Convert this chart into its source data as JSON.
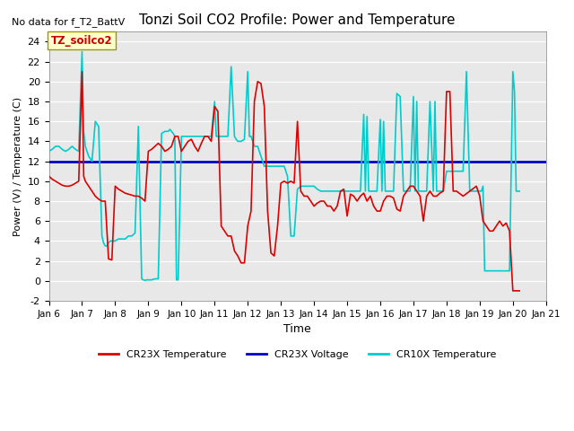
{
  "title": "Tonzi Soil CO2 Profile: Power and Temperature",
  "subtitle": "No data for f_T2_BattV",
  "ylabel": "Power (V) / Temperature (C)",
  "xlabel": "Time",
  "ylim": [
    -2,
    25
  ],
  "yticks": [
    -2,
    0,
    2,
    4,
    6,
    8,
    10,
    12,
    14,
    16,
    18,
    20,
    22,
    24
  ],
  "xtick_labels": [
    "Jan 6",
    "Jan 7",
    "Jan 8",
    "Jan 9",
    "Jan 10",
    "Jan 11",
    "Jan 12",
    "Jan 13",
    "Jan 14",
    "Jan 15",
    "Jan 16",
    "Jan 17",
    "Jan 18",
    "Jan 19",
    "Jan 20",
    "Jan 21"
  ],
  "annotation_box": "TZ_soilco2",
  "annotation_box_color": "#ffffcc",
  "annotation_box_text_color": "#cc0000",
  "plot_bg_color": "#e8e8e8",
  "cr23x_temp_color": "#dd0000",
  "cr23x_volt_color": "#0000cc",
  "cr10x_temp_color": "#00cccc",
  "voltage_value": 12.0,
  "cr23x_temp_x": [
    6.0,
    6.1,
    6.2,
    6.3,
    6.4,
    6.5,
    6.6,
    6.7,
    6.8,
    6.9,
    7.0,
    7.05,
    7.1,
    7.2,
    7.3,
    7.4,
    7.5,
    7.6,
    7.7,
    7.8,
    7.9,
    8.0,
    8.1,
    8.2,
    8.3,
    8.4,
    8.5,
    8.6,
    8.7,
    8.8,
    8.9,
    9.0,
    9.1,
    9.2,
    9.3,
    9.4,
    9.5,
    9.6,
    9.7,
    9.8,
    9.9,
    10.0,
    10.1,
    10.2,
    10.3,
    10.4,
    10.5,
    10.6,
    10.7,
    10.8,
    10.9,
    11.0,
    11.1,
    11.2,
    11.3,
    11.4,
    11.5,
    11.6,
    11.7,
    11.8,
    11.9,
    12.0,
    12.1,
    12.2,
    12.3,
    12.4,
    12.5,
    12.6,
    12.7,
    12.8,
    12.9,
    13.0,
    13.1,
    13.2,
    13.3,
    13.4,
    13.5,
    13.6,
    13.7,
    13.8,
    13.9,
    14.0,
    14.1,
    14.2,
    14.3,
    14.4,
    14.5,
    14.6,
    14.7,
    14.8,
    14.9,
    15.0,
    15.1,
    15.2,
    15.3,
    15.4,
    15.5,
    15.6,
    15.7,
    15.8,
    15.9,
    16.0,
    16.1,
    16.2,
    16.3,
    16.4,
    16.5,
    16.6,
    16.7,
    16.8,
    16.9,
    17.0,
    17.1,
    17.2,
    17.3,
    17.4,
    17.5,
    17.6,
    17.7,
    17.8,
    17.9,
    18.0,
    18.1,
    18.2,
    18.3,
    18.5,
    18.7,
    18.9,
    19.0,
    19.1,
    19.2,
    19.3,
    19.4,
    19.5,
    19.6,
    19.7,
    19.8,
    19.9,
    20.0,
    20.1,
    20.2
  ],
  "cr23x_temp_y": [
    10.5,
    10.2,
    10.0,
    9.8,
    9.6,
    9.5,
    9.5,
    9.6,
    9.8,
    10.0,
    21.0,
    10.5,
    10.0,
    9.5,
    9.0,
    8.5,
    8.2,
    8.0,
    8.0,
    2.2,
    2.1,
    9.5,
    9.2,
    9.0,
    8.8,
    8.7,
    8.6,
    8.5,
    8.5,
    8.3,
    8.0,
    13.0,
    13.2,
    13.5,
    13.8,
    13.5,
    13.0,
    13.2,
    13.5,
    14.5,
    14.5,
    13.0,
    13.5,
    14.0,
    14.2,
    13.5,
    13.0,
    13.8,
    14.5,
    14.5,
    14.0,
    17.5,
    17.0,
    5.5,
    5.0,
    4.5,
    4.5,
    3.0,
    2.5,
    1.8,
    1.8,
    5.5,
    7.0,
    18.0,
    20.0,
    19.8,
    17.5,
    7.0,
    2.8,
    2.5,
    5.5,
    9.8,
    10.0,
    9.8,
    10.0,
    9.8,
    16.0,
    9.0,
    8.5,
    8.5,
    8.0,
    7.5,
    7.8,
    8.0,
    8.0,
    7.5,
    7.5,
    7.0,
    7.5,
    9.0,
    9.2,
    6.5,
    8.7,
    8.5,
    8.0,
    8.5,
    8.8,
    8.0,
    8.5,
    7.5,
    7.0,
    7.0,
    8.0,
    8.5,
    8.5,
    8.3,
    7.2,
    7.0,
    8.5,
    9.0,
    9.5,
    9.5,
    9.0,
    8.5,
    6.0,
    8.5,
    9.0,
    8.5,
    8.5,
    8.8,
    9.0,
    19.0,
    19.0,
    9.0,
    9.0,
    8.5,
    9.0,
    9.5,
    8.5,
    6.0,
    5.5,
    5.0,
    5.0,
    5.5,
    6.0,
    5.5,
    5.8,
    5.0,
    -1.0,
    -1.0,
    -1.0
  ],
  "cr10x_temp_x": [
    6.0,
    6.1,
    6.2,
    6.3,
    6.4,
    6.5,
    6.6,
    6.7,
    6.8,
    6.9,
    7.0,
    7.05,
    7.1,
    7.2,
    7.3,
    7.4,
    7.5,
    7.6,
    7.65,
    7.7,
    7.75,
    7.8,
    7.85,
    7.9,
    8.0,
    8.1,
    8.2,
    8.3,
    8.4,
    8.5,
    8.6,
    8.7,
    8.8,
    8.85,
    8.9,
    8.95,
    9.0,
    9.1,
    9.2,
    9.3,
    9.4,
    9.5,
    9.6,
    9.65,
    9.7,
    9.75,
    9.8,
    9.85,
    9.9,
    10.0,
    10.1,
    10.2,
    10.3,
    10.4,
    10.5,
    10.6,
    10.7,
    10.8,
    10.9,
    11.0,
    11.05,
    11.1,
    11.2,
    11.3,
    11.4,
    11.5,
    11.6,
    11.65,
    11.7,
    11.75,
    11.8,
    11.9,
    12.0,
    12.05,
    12.1,
    12.15,
    12.2,
    12.3,
    12.4,
    12.5,
    12.6,
    12.7,
    12.8,
    12.9,
    13.0,
    13.1,
    13.2,
    13.3,
    13.4,
    13.5,
    13.6,
    13.7,
    13.8,
    13.9,
    14.0,
    14.1,
    14.2,
    14.3,
    14.4,
    14.5,
    14.6,
    14.7,
    14.8,
    14.9,
    15.0,
    15.1,
    15.2,
    15.3,
    15.4,
    15.5,
    15.55,
    15.6,
    15.65,
    15.7,
    15.8,
    15.9,
    16.0,
    16.05,
    16.1,
    16.15,
    16.2,
    16.3,
    16.4,
    16.5,
    16.6,
    16.7,
    16.8,
    16.9,
    17.0,
    17.05,
    17.1,
    17.15,
    17.2,
    17.3,
    17.4,
    17.5,
    17.6,
    17.65,
    17.7,
    17.75,
    17.8,
    17.9,
    18.0,
    18.05,
    18.1,
    18.15,
    18.2,
    18.3,
    18.4,
    18.5,
    18.6,
    18.7,
    18.8,
    18.9,
    19.0,
    19.05,
    19.1,
    19.15,
    19.2,
    19.3,
    19.4,
    19.5,
    19.6,
    19.7,
    19.8,
    19.9,
    20.0,
    20.05,
    20.1,
    20.15,
    20.2
  ],
  "cr10x_temp_y": [
    13.0,
    13.2,
    13.5,
    13.5,
    13.2,
    13.0,
    13.2,
    13.5,
    13.2,
    13.0,
    23.0,
    15.0,
    13.5,
    12.5,
    12.0,
    16.0,
    15.5,
    4.5,
    3.8,
    3.5,
    3.5,
    3.8,
    4.0,
    4.0,
    4.0,
    4.2,
    4.2,
    4.2,
    4.5,
    4.5,
    4.8,
    15.5,
    0.2,
    0.1,
    0.05,
    0.1,
    0.1,
    0.1,
    0.2,
    0.2,
    14.8,
    15.0,
    15.0,
    15.2,
    15.0,
    14.8,
    14.5,
    0.1,
    0.1,
    14.5,
    14.5,
    14.5,
    14.5,
    14.5,
    14.5,
    14.5,
    14.5,
    14.5,
    14.5,
    18.0,
    14.5,
    14.5,
    14.5,
    14.5,
    14.5,
    21.5,
    14.5,
    14.2,
    14.0,
    14.0,
    14.0,
    14.2,
    21.0,
    14.5,
    14.5,
    14.0,
    13.5,
    13.5,
    12.5,
    11.5,
    11.5,
    11.5,
    11.5,
    11.5,
    11.5,
    11.5,
    10.5,
    4.5,
    4.5,
    9.2,
    9.5,
    9.5,
    9.5,
    9.5,
    9.5,
    9.2,
    9.0,
    9.0,
    9.0,
    9.0,
    9.0,
    9.0,
    9.0,
    9.0,
    9.0,
    9.0,
    9.0,
    9.0,
    9.0,
    16.7,
    9.0,
    16.5,
    9.0,
    9.0,
    9.0,
    9.0,
    16.2,
    9.0,
    16.0,
    9.0,
    9.0,
    9.0,
    9.0,
    18.8,
    18.5,
    9.0,
    9.0,
    9.0,
    18.5,
    9.0,
    18.0,
    9.0,
    9.0,
    9.0,
    9.0,
    18.0,
    9.0,
    18.0,
    9.0,
    9.0,
    9.0,
    9.0,
    11.0,
    11.0,
    11.0,
    11.0,
    11.0,
    11.0,
    11.0,
    11.0,
    21.0,
    9.0,
    9.0,
    9.0,
    9.0,
    9.0,
    9.5,
    1.0,
    1.0,
    1.0,
    1.0,
    1.0,
    1.0,
    1.0,
    1.0,
    1.0,
    21.0,
    19.0,
    9.0,
    9.0,
    9.0
  ]
}
